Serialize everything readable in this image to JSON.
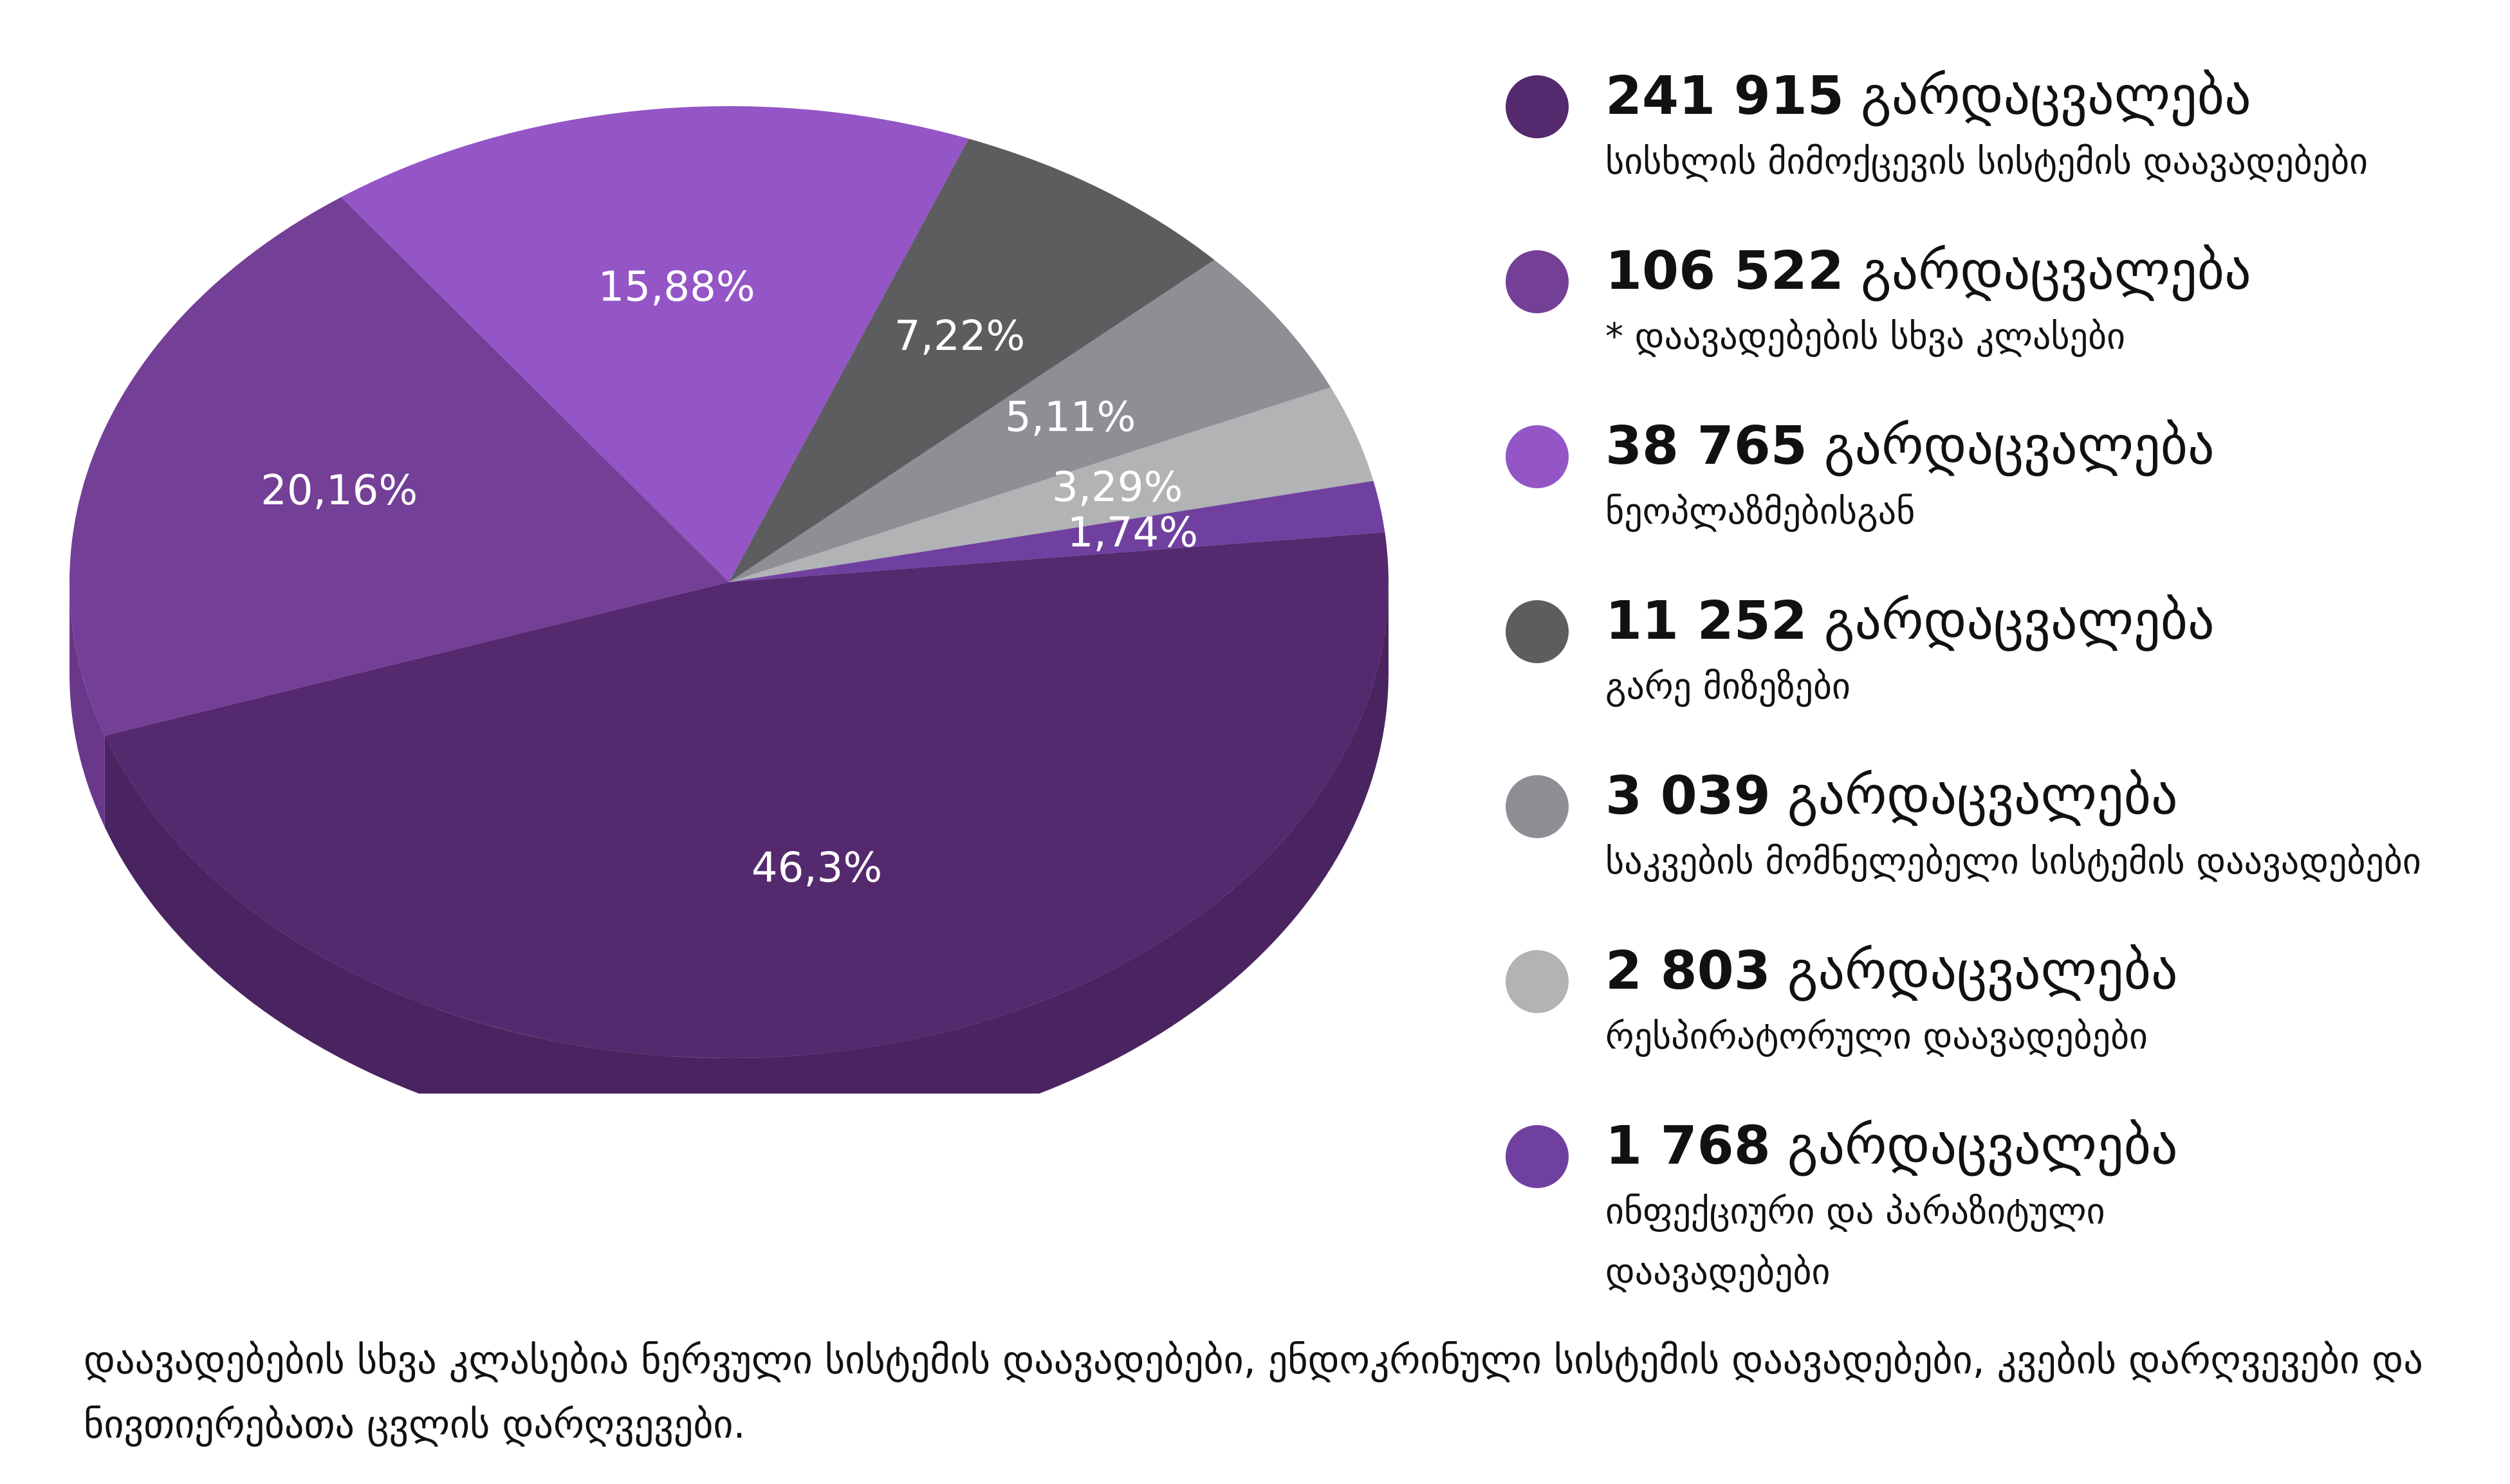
{
  "chart_data": {
    "type": "pie",
    "slices": [
      {
        "label": "46,3%",
        "value": 46.3,
        "color": "#54296d",
        "side_color": "#4a2460"
      },
      {
        "label": "20,16%",
        "value": 20.16,
        "color": "#743f97",
        "side_color": "#6a388a"
      },
      {
        "label": "15,88%",
        "value": 15.88,
        "color": "#9455c6",
        "side_color": "#854cb3"
      },
      {
        "label": "7,22%",
        "value": 7.22,
        "color": "#5d5d5f",
        "side_color": "#505052"
      },
      {
        "label": "5,11%",
        "value": 5.11,
        "color": "#8d8f94",
        "side_color": "#7d7f84"
      },
      {
        "label": "3,29%",
        "value": 3.29,
        "color": "#b1b3b5",
        "side_color": "#a0a2a4"
      },
      {
        "label": "1,74%",
        "value": 1.74,
        "color": "#7040a0",
        "side_color": "#643990"
      }
    ]
  },
  "legend": {
    "unit": "გარდაცვალება",
    "items": [
      {
        "value": "241 915",
        "description": "სისხლის მიმოქცევის სისტემის დაავადებები",
        "color": "#54296d"
      },
      {
        "value": "106 522",
        "description": "* დაავადებების სხვა კლასები",
        "color": "#743f97"
      },
      {
        "value": "38 765",
        "description": "ნეოპლაზმებისგან",
        "color": "#9455c6"
      },
      {
        "value": "11 252",
        "description": "გარე მიზეზები",
        "color": "#5d5d5f"
      },
      {
        "value": "3 039",
        "description": "საკვების მომნელებელი სისტემის დაავადებები",
        "color": "#8d8f94"
      },
      {
        "value": "2 803",
        "description": "რესპირატორული დაავადებები",
        "color": "#b1b3b5"
      },
      {
        "value": "1 768",
        "description": "ინფექციური და პარაზიტული დაავადებები",
        "color": "#7040a0"
      }
    ]
  },
  "footnote": "დაავადებების სხვა კლასებია ნერვული სისტემის დაავადებები, ენდოკრინული სისტემის დაავადებები, კვების დარღვევები და ნივთიერებათა ცვლის დარღვევები."
}
